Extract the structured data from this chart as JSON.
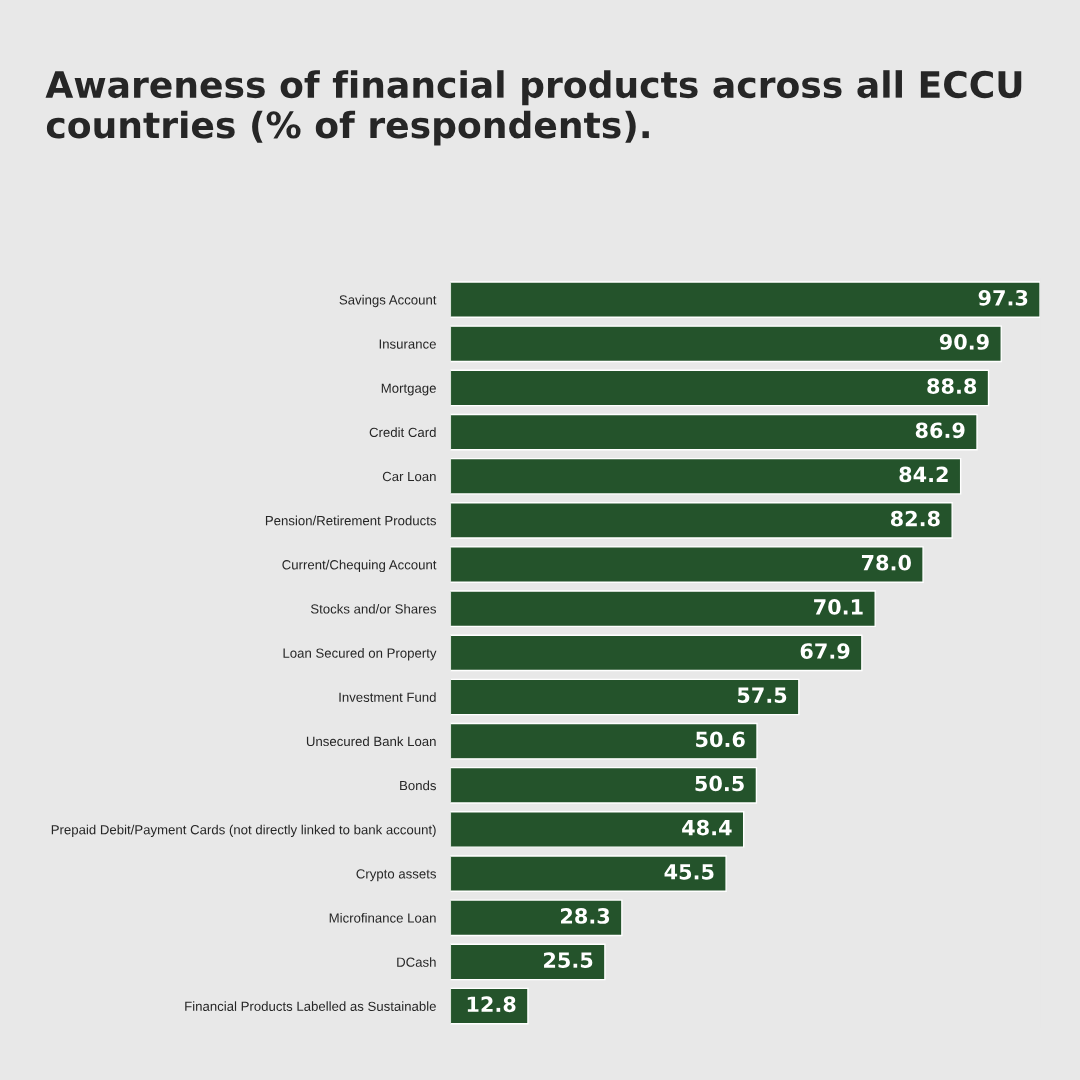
{
  "chart_data": {
    "type": "bar",
    "orientation": "horizontal",
    "title": "Awareness of financial products across all ECCU countries (% of respondents).",
    "categories": [
      "Savings Account",
      "Insurance",
      "Mortgage",
      "Credit Card",
      "Car Loan",
      "Pension/Retirement Products",
      "Current/Chequing Account",
      "Stocks and/or Shares",
      "Loan Secured on Property",
      "Investment Fund",
      "Unsecured Bank Loan",
      "Bonds",
      "Prepaid Debit/Payment Cards (not directly linked to bank account)",
      "Crypto assets",
      "Microfinance Loan",
      "DCash",
      "Financial Products Labelled as Sustainable"
    ],
    "values": [
      97.3,
      90.9,
      88.8,
      86.9,
      84.2,
      82.8,
      78.0,
      70.1,
      67.9,
      57.5,
      50.6,
      50.5,
      48.4,
      45.5,
      28.3,
      25.5,
      12.8
    ],
    "value_labels": [
      "97.3",
      "90.9",
      "88.8",
      "86.9",
      "84.2",
      "82.8",
      "78.0",
      "70.1",
      "67.9",
      "57.5",
      "50.6",
      "50.5",
      "48.4",
      "45.5",
      "28.3",
      "25.5",
      "12.8"
    ],
    "color": "#24532b",
    "grid": false,
    "legend": false
  }
}
